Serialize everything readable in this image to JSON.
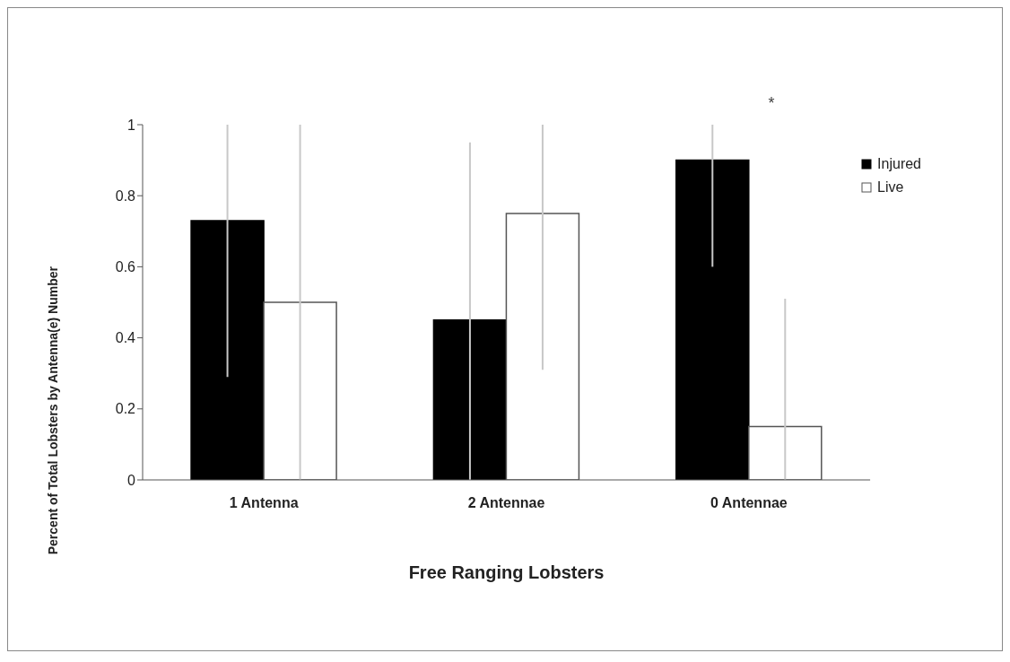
{
  "chart_data": {
    "type": "bar",
    "xlabel": "Free Ranging Lobsters",
    "ylabel": "Percent of Total Lobsters by Antenna(e) Number",
    "categories": [
      "1 Antenna",
      "2 Antennae",
      "0 Antennae"
    ],
    "series": [
      {
        "name": "Injured",
        "color": "#000000",
        "values": [
          0.73,
          0.45,
          0.9
        ],
        "errors": [
          [
            0.29,
            1.0
          ],
          [
            0,
            0.95
          ],
          [
            0.6,
            1.0
          ]
        ]
      },
      {
        "name": "Live",
        "color": "#ffffff",
        "values": [
          0.5,
          0.75,
          0.15
        ],
        "errors": [
          [
            0,
            1.0
          ],
          [
            0.31,
            1.0
          ],
          [
            0,
            0.51
          ]
        ]
      }
    ],
    "ylim": [
      0,
      1
    ],
    "yticks": [
      0,
      0.2,
      0.4,
      0.6,
      0.8,
      1
    ],
    "grid": false,
    "legend": "top right",
    "annotations": [
      "*"
    ]
  }
}
